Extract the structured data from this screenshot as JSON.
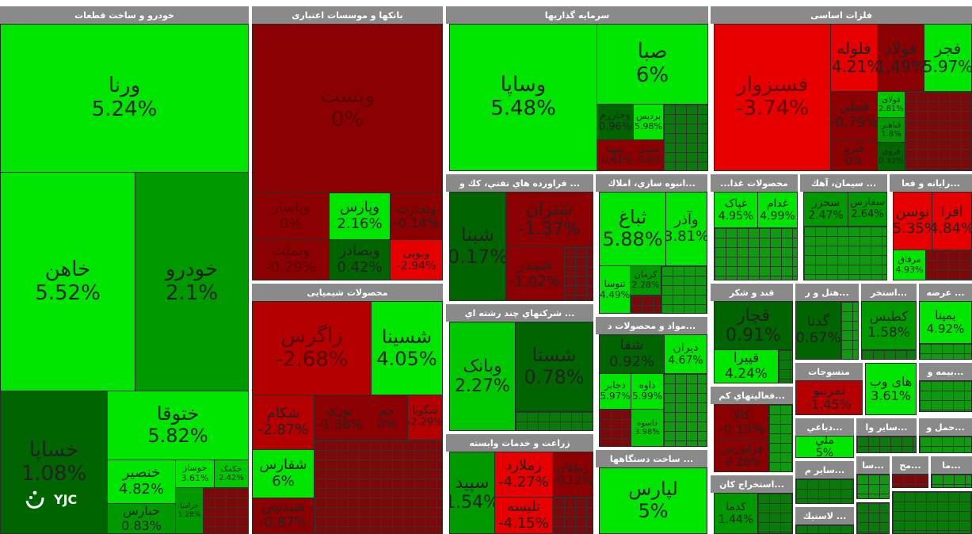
{
  "sectors": [
    {
      "title": "خودرو و ساخت قطعات"
    },
    {
      "title": "بانکها و موسسات اعتباری"
    },
    {
      "title": "سرمایه گذاریها"
    },
    {
      "title": "فلزات اساسی"
    },
    {
      "title": "محصولات شیمیایی"
    },
    {
      "title": "... فراورده هاي نفتي، کك و"
    },
    {
      "title": "...انبوه سازي، املاك"
    },
    {
      "title": "محصولات غذا..."
    },
    {
      "title": "... سیمان، آهك"
    },
    {
      "title": "...رایانه و فعا"
    },
    {
      "title": "... شرکتهاي چند رشته اي"
    },
    {
      "title": "...مواد و محصولات د"
    },
    {
      "title": "قند و شکر"
    },
    {
      "title": "...هتل و ر"
    },
    {
      "title": "...استخر"
    },
    {
      "title": "... عرضه"
    },
    {
      "title": "زراعت و خدمات وابسته"
    },
    {
      "title": "... ساخت دستگاهها"
    },
    {
      "title": "...فعالیتهاي کم"
    },
    {
      "title": "منسوجات"
    },
    {
      "title": "...بیمه و"
    },
    {
      "title": "...استخراج کان"
    },
    {
      "title": "...دباغي"
    },
    {
      "title": "...سایر وا"
    },
    {
      "title": "...حمل و"
    },
    {
      "title": "...سایر م"
    },
    {
      "title": "...سا"
    },
    {
      "title": "...مح"
    },
    {
      "title": "...ما"
    },
    {
      "title": "... لاستيك"
    }
  ],
  "tiles": [
    {
      "name": "ورنا",
      "pct": "5.24%",
      "color": "g1"
    },
    {
      "name": "خاهن",
      "pct": "5.52%",
      "color": "g1"
    },
    {
      "name": "خودرو",
      "pct": "2.1%",
      "color": "g3"
    },
    {
      "name": "خساپا",
      "pct": "1.08%",
      "color": "g4"
    },
    {
      "name": "ختوقا",
      "pct": "5.82%",
      "color": "g1"
    },
    {
      "name": "خنصیر",
      "pct": "4.82%",
      "color": "g1"
    },
    {
      "name": "خوساز",
      "pct": "3.61%",
      "color": "g1"
    },
    {
      "name": "خکمک",
      "pct": "2.42%",
      "color": "g2"
    },
    {
      "name": "خرامیا",
      "pct": "1.28%",
      "color": "g3"
    },
    {
      "name": "حبارس",
      "pct": "0.83%",
      "color": "g3"
    },
    {
      "name": "وبست",
      "pct": "0%",
      "color": "r3"
    },
    {
      "name": "وپاسار",
      "pct": "0%",
      "color": "r3"
    },
    {
      "name": "وپارس",
      "pct": "2.16%",
      "color": "g1"
    },
    {
      "name": "ونجارت",
      "pct": "-0.14%",
      "color": "r3"
    },
    {
      "name": "وبملت",
      "pct": "-0.29%",
      "color": "r3"
    },
    {
      "name": "وبصادر",
      "pct": "0.42%",
      "color": "g4"
    },
    {
      "name": "وبوبی",
      "pct": "-2.94%",
      "color": "r1"
    },
    {
      "name": "وساپا",
      "pct": "5.48%",
      "color": "g1"
    },
    {
      "name": "صبا",
      "pct": "6%",
      "color": "g1"
    },
    {
      "name": "وخارزم",
      "pct": "0.96%",
      "color": "g4"
    },
    {
      "name": "بردیس",
      "pct": "5.98%",
      "color": "g1"
    },
    {
      "name": "وبهیا",
      "pct": "-0.61%",
      "color": "r3"
    },
    {
      "name": "سمبل",
      "pct": "-0.8%",
      "color": "r3"
    },
    {
      "name": "فسبزوار",
      "pct": "-3.74%",
      "color": "r1"
    },
    {
      "name": "فلوله",
      "pct": "-4.21%",
      "color": "r1"
    },
    {
      "name": "فولاد",
      "pct": "1.49%",
      "color": "r3"
    },
    {
      "name": "فجر",
      "pct": "5.97%",
      "color": "g1"
    },
    {
      "name": "فملي",
      "pct": "-0.79%",
      "color": "r3"
    },
    {
      "name": "فولای",
      "pct": "2.81%",
      "color": "g2"
    },
    {
      "name": "فباهنر",
      "pct": "1.8%",
      "color": "g3"
    },
    {
      "name": "فنرو",
      "pct": "0%",
      "color": "r3"
    },
    {
      "name": "فروی",
      "pct": "0.32%",
      "color": "g4"
    },
    {
      "name": "زاگرس",
      "pct": "-2.68%",
      "color": "r2"
    },
    {
      "name": "شسینا",
      "pct": "4.05%",
      "color": "g1"
    },
    {
      "name": "شکام",
      "pct": "-2.87%",
      "color": "r2"
    },
    {
      "name": "نوری",
      "pct": "-1.38%",
      "color": "r3"
    },
    {
      "name": "جم",
      "pct": "0%",
      "color": "r3"
    },
    {
      "name": "شگویا",
      "pct": "-2.29%",
      "color": "r2"
    },
    {
      "name": "شفارس",
      "pct": "6%",
      "color": "g1"
    },
    {
      "name": "شبدیس",
      "pct": "-0.87%",
      "color": "r3"
    },
    {
      "name": "شبنا",
      "pct": "0.17%",
      "color": "g4"
    },
    {
      "name": "شتران",
      "pct": "-1.37%",
      "color": "r3"
    },
    {
      "name": "شبندر",
      "pct": "-1.02%",
      "color": "r3"
    },
    {
      "name": "ثباغ",
      "pct": "5.88%",
      "color": "g1"
    },
    {
      "name": "وآذر",
      "pct": "3.81%",
      "color": "g1"
    },
    {
      "name": "کرمان",
      "pct": "2.28%",
      "color": "g3"
    },
    {
      "name": "ثنوسا",
      "pct": "4.49%",
      "color": "g1"
    },
    {
      "name": "غپاک",
      "pct": "4.95%",
      "color": "g1"
    },
    {
      "name": "غدام",
      "pct": "4.99%",
      "color": "g1"
    },
    {
      "name": "سخزر",
      "pct": "2.47%",
      "color": "g2"
    },
    {
      "name": "سفارس",
      "pct": "2.64%",
      "color": "g2"
    },
    {
      "name": "افرانت",
      "pct": "",
      "color": "r1"
    },
    {
      "name": "نوسن",
      "pct": "-5.35%",
      "color": "r1"
    },
    {
      "name": "افرا",
      "pct": "4.84%",
      "color": "r1"
    },
    {
      "name": "مرفاق",
      "pct": "4.93%",
      "color": "g1"
    },
    {
      "name": "وبانک",
      "pct": "2.27%",
      "color": "g2"
    },
    {
      "name": "شستا",
      "pct": "0.78%",
      "color": "g4"
    },
    {
      "name": "شفا",
      "pct": "0.92%",
      "color": "g4"
    },
    {
      "name": "دیران",
      "pct": "4.67%",
      "color": "g1"
    },
    {
      "name": "داوه",
      "pct": "5.99%",
      "color": "g1"
    },
    {
      "name": "دجابر",
      "pct": "5.97%",
      "color": "g1"
    },
    {
      "name": "داسوه",
      "pct": "3.98%",
      "color": "g2"
    },
    {
      "name": "قچار",
      "pct": "0.91%",
      "color": "g4"
    },
    {
      "name": "قپیرا",
      "pct": "4.24%",
      "color": "g1"
    },
    {
      "name": "گدنا",
      "pct": "0.67%",
      "color": "g4"
    },
    {
      "name": "کطبس",
      "pct": "1.58%",
      "color": "g3"
    },
    {
      "name": "بمپنا",
      "pct": "4.92%",
      "color": "g1"
    },
    {
      "name": "سپید",
      "pct": "1.54%",
      "color": "g3"
    },
    {
      "name": "زملارد",
      "pct": "-4.27%",
      "color": "r1"
    },
    {
      "name": "زماهان",
      "pct": "-0.12%",
      "color": "r3"
    },
    {
      "name": "تلیسه",
      "pct": "-4.15%",
      "color": "r1"
    },
    {
      "name": "لپارس",
      "pct": "5%",
      "color": "g1"
    },
    {
      "name": "کالا",
      "pct": "-0.15%",
      "color": "r3"
    },
    {
      "name": "فرابورس",
      "pct": "-0.28%",
      "color": "r3"
    },
    {
      "name": "نمرینو",
      "pct": "-1.45%",
      "color": "r2"
    },
    {
      "name": "های وب",
      "pct": "3.61%",
      "color": "g1"
    },
    {
      "name": "کدما",
      "pct": "1.44%",
      "color": "g3"
    },
    {
      "name": "ملي",
      "pct": "5%",
      "color": "g1"
    }
  ],
  "logo": {
    "text": "YJC"
  }
}
